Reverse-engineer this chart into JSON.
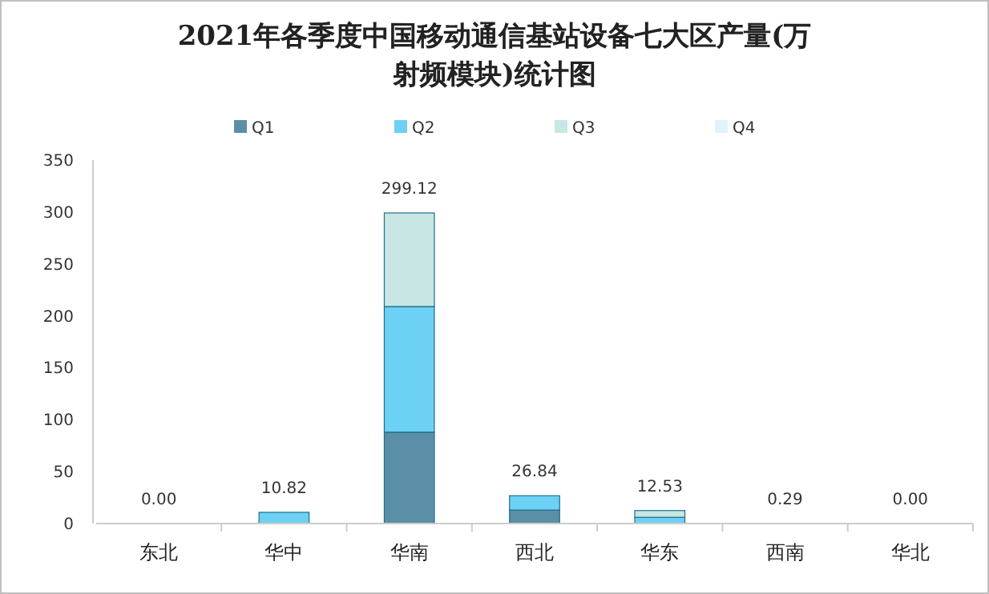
{
  "chart_data": {
    "type": "bar",
    "title": "2021年各季度中国移动通信基站设备七大区产量(万射频模块)统计图",
    "categories": [
      "东北",
      "华中",
      "华南",
      "西北",
      "华东",
      "西南",
      "华北"
    ],
    "series": [
      {
        "name": "Q1",
        "color": "#5b8fa8",
        "values": [
          0,
          null,
          88,
          13,
          null,
          0.29,
          0
        ]
      },
      {
        "name": "Q2",
        "color": "#6dd0f5",
        "values": [
          0,
          10.82,
          121,
          13.84,
          6,
          0,
          0
        ]
      },
      {
        "name": "Q3",
        "color": "#c8e6e4",
        "values": [
          0,
          0,
          90.12,
          0,
          6.53,
          0,
          0
        ]
      },
      {
        "name": "Q4",
        "color": "#dff3fb",
        "values": [
          0,
          0,
          0,
          0,
          0,
          0,
          0
        ]
      }
    ],
    "stacked": true,
    "totals": [
      "0.00",
      "10.82",
      "299.12",
      "26.84",
      "12.53",
      "0.29",
      "0.00"
    ],
    "ylim": [
      0,
      350
    ],
    "yticks": [
      0,
      50,
      100,
      150,
      200,
      250,
      300,
      350
    ],
    "grid": false,
    "legend": "top"
  }
}
